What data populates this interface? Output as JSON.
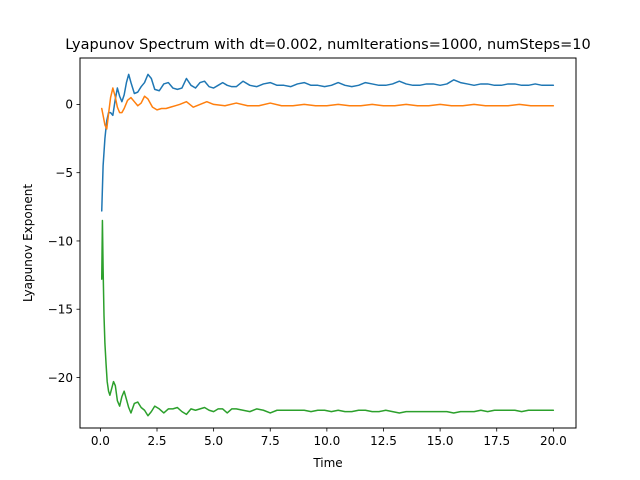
{
  "chart_data": {
    "type": "line",
    "title": "Lyapunov Spectrum with dt=0.002, numIterations=1000, numSteps=10",
    "xlabel": "Time",
    "ylabel": "Lyapunov Exponent",
    "xlim": [
      -0.9,
      21.0
    ],
    "ylim": [
      -23.7,
      3.4
    ],
    "xticks": [
      0.0,
      2.5,
      5.0,
      7.5,
      10.0,
      12.5,
      15.0,
      17.5,
      20.0
    ],
    "xtick_labels": [
      "0.0",
      "2.5",
      "5.0",
      "7.5",
      "10.0",
      "12.5",
      "15.0",
      "17.5",
      "20.0"
    ],
    "yticks": [
      0,
      -5,
      -10,
      -15,
      -20
    ],
    "ytick_labels": [
      "0",
      "−5",
      "−10",
      "−15",
      "−20"
    ],
    "grid": false,
    "series": [
      {
        "color": "#1f77b4",
        "x": [
          0.06,
          0.12,
          0.2,
          0.28,
          0.36,
          0.45,
          0.55,
          0.65,
          0.75,
          0.85,
          0.95,
          1.05,
          1.15,
          1.25,
          1.35,
          1.5,
          1.65,
          1.8,
          1.95,
          2.1,
          2.25,
          2.4,
          2.6,
          2.8,
          3.0,
          3.2,
          3.4,
          3.6,
          3.8,
          4.0,
          4.2,
          4.4,
          4.6,
          4.8,
          5.0,
          5.2,
          5.4,
          5.6,
          5.8,
          6.0,
          6.3,
          6.6,
          6.9,
          7.2,
          7.5,
          7.8,
          8.1,
          8.4,
          8.7,
          9.0,
          9.3,
          9.6,
          9.9,
          10.2,
          10.5,
          10.8,
          11.1,
          11.4,
          11.7,
          12.0,
          12.3,
          12.6,
          12.9,
          13.2,
          13.5,
          13.8,
          14.1,
          14.4,
          14.7,
          15.0,
          15.3,
          15.6,
          15.9,
          16.2,
          16.5,
          16.8,
          17.1,
          17.4,
          17.7,
          18.0,
          18.3,
          18.6,
          18.9,
          19.2,
          19.5,
          19.8,
          20.0
        ],
        "values": [
          -7.8,
          -4.5,
          -2.5,
          -1.2,
          -0.6,
          -0.6,
          -0.8,
          0.3,
          1.2,
          0.6,
          0.2,
          0.7,
          1.6,
          2.2,
          1.6,
          0.8,
          0.9,
          1.3,
          1.6,
          2.2,
          1.9,
          1.1,
          1.0,
          1.5,
          1.6,
          1.2,
          1.1,
          1.2,
          1.9,
          1.4,
          1.2,
          1.6,
          1.7,
          1.3,
          1.2,
          1.4,
          1.6,
          1.4,
          1.3,
          1.3,
          1.7,
          1.4,
          1.3,
          1.5,
          1.6,
          1.4,
          1.4,
          1.3,
          1.5,
          1.6,
          1.4,
          1.4,
          1.3,
          1.4,
          1.6,
          1.4,
          1.3,
          1.4,
          1.6,
          1.5,
          1.4,
          1.4,
          1.5,
          1.7,
          1.5,
          1.4,
          1.4,
          1.5,
          1.5,
          1.4,
          1.5,
          1.8,
          1.6,
          1.5,
          1.4,
          1.5,
          1.5,
          1.4,
          1.4,
          1.5,
          1.5,
          1.4,
          1.4,
          1.5,
          1.4,
          1.4,
          1.4
        ]
      },
      {
        "color": "#ff7f0e",
        "x": [
          0.06,
          0.12,
          0.2,
          0.28,
          0.36,
          0.45,
          0.55,
          0.65,
          0.75,
          0.85,
          0.95,
          1.05,
          1.2,
          1.35,
          1.5,
          1.65,
          1.8,
          1.95,
          2.1,
          2.3,
          2.5,
          2.7,
          2.9,
          3.1,
          3.3,
          3.5,
          3.8,
          4.1,
          4.4,
          4.7,
          5.0,
          5.5,
          6.0,
          6.5,
          7.0,
          7.5,
          8.0,
          8.5,
          9.0,
          9.5,
          10.0,
          10.5,
          11.0,
          11.5,
          12.0,
          12.5,
          13.0,
          13.5,
          14.0,
          14.5,
          15.0,
          15.5,
          16.0,
          16.5,
          17.0,
          17.5,
          18.0,
          18.5,
          19.0,
          19.5,
          20.0
        ],
        "values": [
          -0.3,
          -0.8,
          -1.5,
          -1.8,
          -0.7,
          0.5,
          1.2,
          0.6,
          -0.2,
          -0.6,
          -0.6,
          -0.3,
          0.3,
          0.5,
          0.2,
          -0.1,
          0.1,
          0.6,
          0.4,
          -0.2,
          -0.4,
          -0.3,
          -0.3,
          -0.2,
          -0.1,
          0.0,
          0.2,
          -0.2,
          0.0,
          0.2,
          0.0,
          -0.1,
          0.1,
          -0.1,
          -0.1,
          0.1,
          -0.1,
          -0.1,
          0.0,
          -0.1,
          -0.1,
          0.0,
          -0.1,
          -0.1,
          0.0,
          -0.1,
          -0.1,
          0.0,
          -0.1,
          -0.1,
          0.0,
          -0.1,
          -0.1,
          0.0,
          -0.1,
          -0.1,
          -0.1,
          0.0,
          -0.1,
          -0.1,
          -0.1
        ]
      },
      {
        "color": "#2ca02c",
        "x": [
          0.06,
          0.09,
          0.12,
          0.16,
          0.2,
          0.25,
          0.3,
          0.36,
          0.42,
          0.5,
          0.58,
          0.66,
          0.75,
          0.85,
          0.95,
          1.05,
          1.15,
          1.25,
          1.35,
          1.5,
          1.65,
          1.8,
          1.95,
          2.1,
          2.25,
          2.4,
          2.6,
          2.8,
          3.0,
          3.2,
          3.4,
          3.6,
          3.8,
          4.0,
          4.2,
          4.4,
          4.6,
          4.8,
          5.0,
          5.2,
          5.4,
          5.6,
          5.8,
          6.0,
          6.3,
          6.6,
          6.9,
          7.2,
          7.5,
          7.8,
          8.1,
          8.4,
          8.7,
          9.0,
          9.3,
          9.6,
          9.9,
          10.2,
          10.5,
          10.8,
          11.1,
          11.4,
          11.7,
          12.0,
          12.3,
          12.6,
          12.9,
          13.2,
          13.5,
          13.8,
          14.1,
          14.4,
          14.7,
          15.0,
          15.3,
          15.6,
          15.9,
          16.2,
          16.5,
          16.8,
          17.1,
          17.4,
          17.7,
          18.0,
          18.3,
          18.6,
          18.9,
          19.2,
          19.5,
          19.8,
          20.0
        ],
        "values": [
          -12.8,
          -8.5,
          -12.0,
          -15.5,
          -17.5,
          -19.0,
          -20.3,
          -21.0,
          -21.3,
          -20.8,
          -20.3,
          -20.6,
          -21.7,
          -22.1,
          -21.4,
          -21.0,
          -21.6,
          -22.2,
          -22.6,
          -21.9,
          -21.8,
          -22.2,
          -22.4,
          -22.8,
          -22.5,
          -22.1,
          -22.3,
          -22.6,
          -22.3,
          -22.3,
          -22.2,
          -22.5,
          -22.7,
          -22.3,
          -22.4,
          -22.3,
          -22.2,
          -22.4,
          -22.5,
          -22.3,
          -22.3,
          -22.6,
          -22.3,
          -22.3,
          -22.4,
          -22.5,
          -22.3,
          -22.4,
          -22.6,
          -22.4,
          -22.4,
          -22.4,
          -22.4,
          -22.4,
          -22.5,
          -22.4,
          -22.4,
          -22.5,
          -22.4,
          -22.5,
          -22.5,
          -22.4,
          -22.4,
          -22.5,
          -22.5,
          -22.4,
          -22.5,
          -22.6,
          -22.5,
          -22.5,
          -22.5,
          -22.5,
          -22.5,
          -22.5,
          -22.5,
          -22.6,
          -22.5,
          -22.5,
          -22.5,
          -22.4,
          -22.5,
          -22.4,
          -22.4,
          -22.4,
          -22.4,
          -22.5,
          -22.4,
          -22.4,
          -22.4,
          -22.4,
          -22.4
        ]
      }
    ]
  }
}
